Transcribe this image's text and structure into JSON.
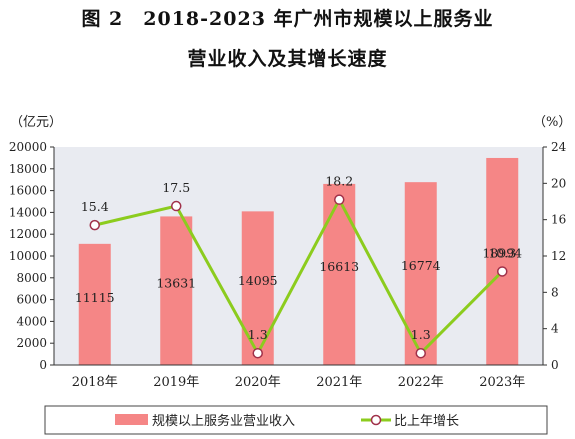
{
  "title": {
    "line1": "图 2　2018-2023 年广州市规模以上服务业",
    "line2": "营业收入及其增长速度"
  },
  "chart_data": {
    "type": "bar",
    "categories": [
      "2018年",
      "2019年",
      "2020年",
      "2021年",
      "2022年",
      "2023年"
    ],
    "series": [
      {
        "name": "规模以上服务业营业收入",
        "type": "bar",
        "axis": "left",
        "values": [
          11115,
          13631,
          14095,
          16613,
          16774,
          18994
        ]
      },
      {
        "name": "比上年增长",
        "type": "line",
        "axis": "right",
        "values": [
          15.4,
          17.5,
          1.3,
          18.2,
          1.3,
          10.3
        ]
      }
    ],
    "left_axis": {
      "unit": "（亿元）",
      "ylim": [
        0,
        20000
      ],
      "ticks": [
        "0",
        "2000",
        "4000",
        "6000",
        "8000",
        "10000",
        "12000",
        "14000",
        "16000",
        "18000",
        "20000"
      ]
    },
    "right_axis": {
      "unit": "（%）",
      "ylim": [
        0,
        24
      ],
      "ticks": [
        "0",
        "4",
        "8",
        "12",
        "16",
        "20",
        "24"
      ]
    },
    "bar_labels": [
      "11115",
      "13631",
      "14095",
      "16613",
      "16774",
      "18994"
    ],
    "line_labels": [
      "15.4",
      "17.5",
      "1.3",
      "18.2",
      "1.3",
      "10.3"
    ],
    "legend_position": "bottom",
    "colors": {
      "bar": "#f58686",
      "line": "#8ccc1e",
      "marker_stroke": "#a0314a",
      "plot_bg": "#e9ebf1"
    }
  }
}
